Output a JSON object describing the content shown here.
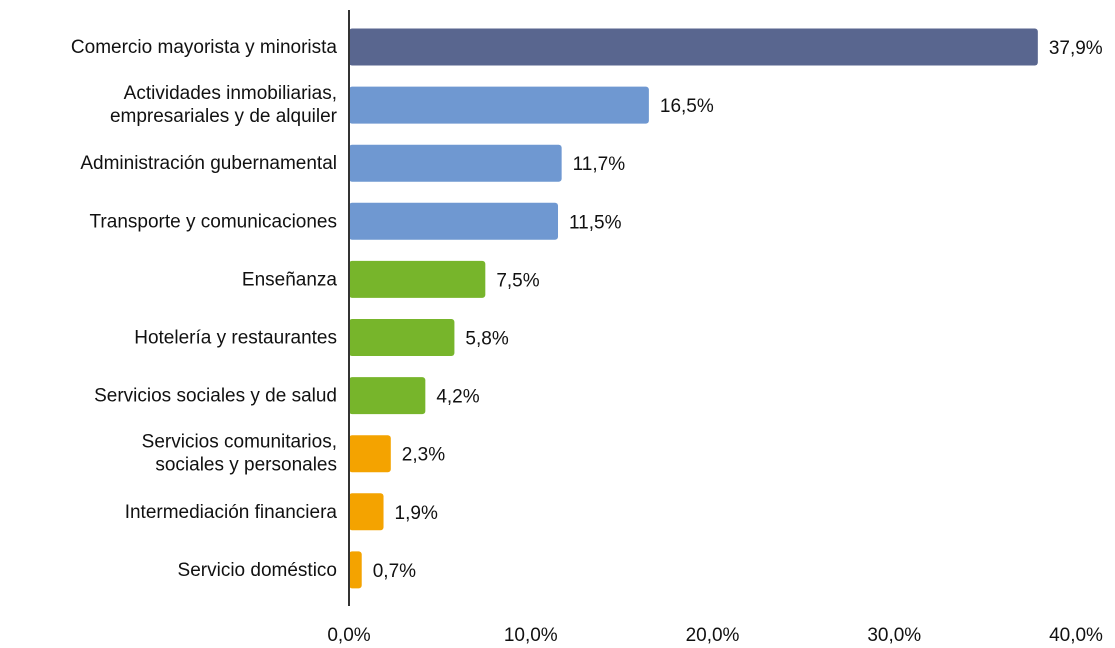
{
  "chart_data": {
    "type": "bar",
    "orientation": "horizontal",
    "categories": [
      "Comercio mayorista y minorista",
      [
        "Actividades inmobiliarias,",
        "empresariales y de alquiler"
      ],
      "Administración gubernamental",
      "Transporte y comunicaciones",
      "Enseñanza",
      "Hotelería y restaurantes",
      "Servicios sociales y de salud",
      [
        "Servicios comunitarios,",
        "sociales y personales"
      ],
      "Intermediación financiera",
      "Servicio doméstico"
    ],
    "values": [
      37.9,
      16.5,
      11.7,
      11.5,
      7.5,
      5.8,
      4.2,
      2.3,
      1.9,
      0.7
    ],
    "value_labels": [
      "37,9%",
      "16,5%",
      "11,7%",
      "11,5%",
      "7,5%",
      "5,8%",
      "4,2%",
      "2,3%",
      "1,9%",
      "0,7%"
    ],
    "colors": [
      "#59668f",
      "#6f98d1",
      "#6f98d1",
      "#6f98d1",
      "#77b52b",
      "#77b52b",
      "#77b52b",
      "#f4a300",
      "#f4a300",
      "#f4a300"
    ],
    "xlim": [
      0,
      40
    ],
    "xticks": [
      {
        "value": 0,
        "label": "0,0%"
      },
      {
        "value": 10,
        "label": "10,0%"
      },
      {
        "value": 20,
        "label": "20,0%"
      },
      {
        "value": 30,
        "label": "30,0%"
      },
      {
        "value": 40,
        "label": "40,0%"
      }
    ],
    "grid": false
  }
}
